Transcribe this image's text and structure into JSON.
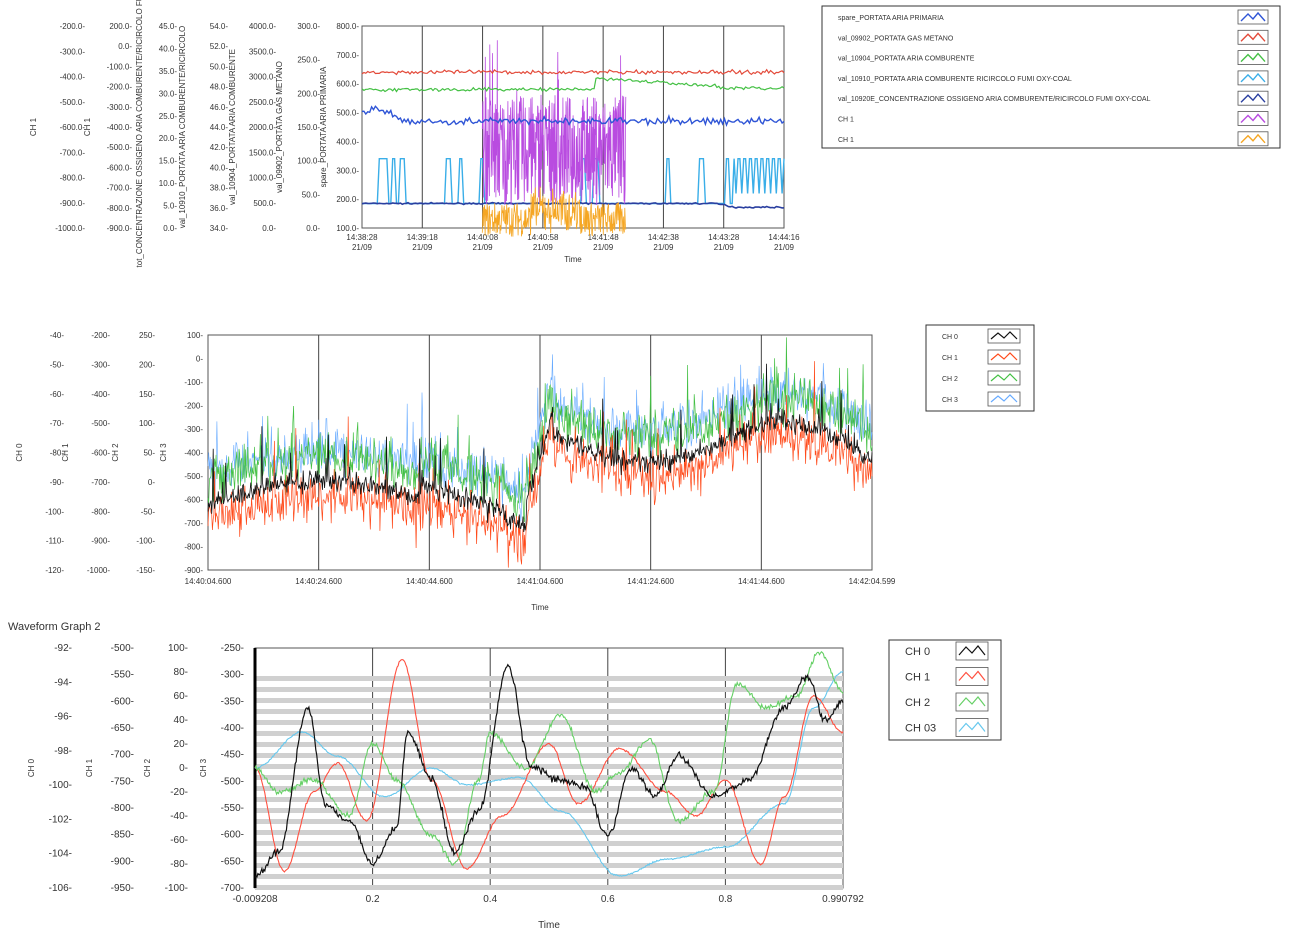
{
  "colors": {
    "blue": "#2f55d6",
    "red": "#e34a3a",
    "green": "#44c044",
    "cyan": "#3aaee8",
    "navy": "#2a3fa0",
    "violet": "#b94ce0",
    "orange": "#f5a623",
    "black": "#111111",
    "orangered": "#ff4a1a",
    "lightblue": "#66aaff"
  },
  "chart_data": [
    {
      "type": "line",
      "title": "",
      "xlabel": "Time",
      "x_ticks": [
        {
          "time": "14:38:28",
          "date": "21/09"
        },
        {
          "time": "14:39:18",
          "date": "21/09"
        },
        {
          "time": "14:40:08",
          "date": "21/09"
        },
        {
          "time": "14:40:58",
          "date": "21/09"
        },
        {
          "time": "14:41:48",
          "date": "21/09"
        },
        {
          "time": "14:42:38",
          "date": "21/09"
        },
        {
          "time": "14:43:28",
          "date": "21/09"
        },
        {
          "time": "14:44:16",
          "date": "21/09"
        }
      ],
      "xlim": [
        "14:38:28",
        "14:44:16"
      ],
      "y_axes": [
        {
          "label": "CH 1",
          "ticks": [
            "-200.0",
            "-300.0",
            "-400.0",
            "-500.0",
            "-600.0",
            "-700.0",
            "-800.0",
            "-900.0",
            "-1000.0"
          ]
        },
        {
          "label": "CH 1",
          "ticks": [
            "200.0",
            "0.0",
            "-100.0",
            "-200.0",
            "-300.0",
            "-400.0",
            "-500.0",
            "-600.0",
            "-700.0",
            "-800.0",
            "-900.0"
          ]
        },
        {
          "label": "tot_CONCENTRAZIONE OSSIGENO ARIA COMBURENTE/RICIRCOLO FUMI",
          "ticks": [
            "45.0",
            "40.0",
            "35.0",
            "30.0",
            "25.0",
            "20.0",
            "15.0",
            "10.0",
            "5.0",
            "0.0"
          ]
        },
        {
          "label": "val_10910_PORTATA ARIA COMBURENTE/RICIRCOLO",
          "ticks": [
            "54.0",
            "52.0",
            "50.0",
            "48.0",
            "46.0",
            "44.0",
            "42.0",
            "40.0",
            "38.0",
            "36.0",
            "34.0"
          ]
        },
        {
          "label": "val_10904_PORTATA ARIA COMBURENTE",
          "ticks": [
            "4000.0",
            "3500.0",
            "3000.0",
            "2500.0",
            "2000.0",
            "1500.0",
            "1000.0",
            "500.0",
            "0.0"
          ]
        },
        {
          "label": "val_09902_PORTATA GAS METANO",
          "ticks": [
            "300.0",
            "250.0",
            "200.0",
            "150.0",
            "100.0",
            "50.0",
            "0.0"
          ]
        },
        {
          "label": "spare_PORTATA ARIA PRIMARIA",
          "ticks": [
            "800.0",
            "700.0",
            "600.0",
            "500.0",
            "400.0",
            "300.0",
            "200.0",
            "100.0"
          ]
        }
      ],
      "legend_position": "right",
      "series": [
        {
          "name": "spare_PORTATA ARIA PRIMARIA",
          "color": "#2f55d6",
          "level": 470
        },
        {
          "name": "val_09902_PORTATA GAS METANO",
          "color": "#e34a3a",
          "level": 640
        },
        {
          "name": "val_10904_PORTATA ARIA COMBURENTE",
          "color": "#44c044",
          "level": 585
        },
        {
          "name": "val_10910_PORTATA ARIA COMBURENTE RICIRCOLO FUMI OXY-COAL",
          "color": "#3aaee8",
          "level": 185
        },
        {
          "name": "val_10920E_CONCENTRAZIONE OSSIGENO ARIA COMBURENTE/RICIRCOLO FUMI OXY-COAL",
          "color": "#2a3fa0",
          "level": 185
        },
        {
          "name": "CH 1",
          "color": "#b94ce0",
          "level": 450
        },
        {
          "name": "CH 1",
          "color": "#f5a623",
          "level": 150
        }
      ]
    },
    {
      "type": "line",
      "title": "",
      "xlabel": "Time",
      "x_ticks": [
        "14:40:04.600",
        "14:40:24.600",
        "14:40:44.600",
        "14:41:04.600",
        "14:41:24.600",
        "14:41:44.600",
        "14:42:04.599"
      ],
      "xlim": [
        "14:40:04.600",
        "14:42:04.599"
      ],
      "y_axes": [
        {
          "label": "CH 0",
          "ticks": [
            "-40",
            "-50",
            "-60",
            "-70",
            "-80",
            "-90",
            "-100",
            "-110",
            "-120"
          ]
        },
        {
          "label": "CH 1",
          "ticks": [
            "-200",
            "-300",
            "-400",
            "-500",
            "-600",
            "-700",
            "-800",
            "-900",
            "-1000"
          ]
        },
        {
          "label": "CH 2",
          "ticks": [
            "250",
            "200",
            "150",
            "100",
            "50",
            "0",
            "-50",
            "-100",
            "-150"
          ]
        },
        {
          "label": "CH 3",
          "ticks": [
            "100",
            "0",
            "-100",
            "-200",
            "-300",
            "-400",
            "-500",
            "-600",
            "-700",
            "-800",
            "-900"
          ]
        }
      ],
      "legend_position": "right",
      "series": [
        {
          "name": "CH 0",
          "color": "#111111"
        },
        {
          "name": "CH 1",
          "color": "#ff4a1a"
        },
        {
          "name": "CH 2",
          "color": "#44c044"
        },
        {
          "name": "CH 3",
          "color": "#66aaff"
        }
      ]
    },
    {
      "type": "line",
      "title": "Waveform Graph 2",
      "xlabel": "Time",
      "x_ticks": [
        "-0.009208",
        "0.2",
        "0.4",
        "0.6",
        "0.8",
        "0.990792"
      ],
      "xlim": [
        -0.009208,
        0.990792
      ],
      "y_axes": [
        {
          "label": "CH 0",
          "ticks": [
            "-92",
            "-94",
            "-96",
            "-98",
            "-100",
            "-102",
            "-104",
            "-106"
          ]
        },
        {
          "label": "CH 1",
          "ticks": [
            "-500",
            "-550",
            "-600",
            "-650",
            "-700",
            "-750",
            "-800",
            "-850",
            "-900",
            "-950"
          ]
        },
        {
          "label": "CH 2",
          "ticks": [
            "100",
            "80",
            "60",
            "40",
            "20",
            "0",
            "-20",
            "-40",
            "-60",
            "-80",
            "-100"
          ]
        },
        {
          "label": "CH 3",
          "ticks": [
            "-250",
            "-300",
            "-350",
            "-400",
            "-450",
            "-500",
            "-550",
            "-600",
            "-650",
            "-700"
          ]
        }
      ],
      "legend_position": "right",
      "series": [
        {
          "name": "CH 0",
          "color": "#111111"
        },
        {
          "name": "CH 1",
          "color": "#ff5040"
        },
        {
          "name": "CH 2",
          "color": "#66d066"
        },
        {
          "name": "CH 03",
          "color": "#66c8ee"
        }
      ]
    }
  ]
}
